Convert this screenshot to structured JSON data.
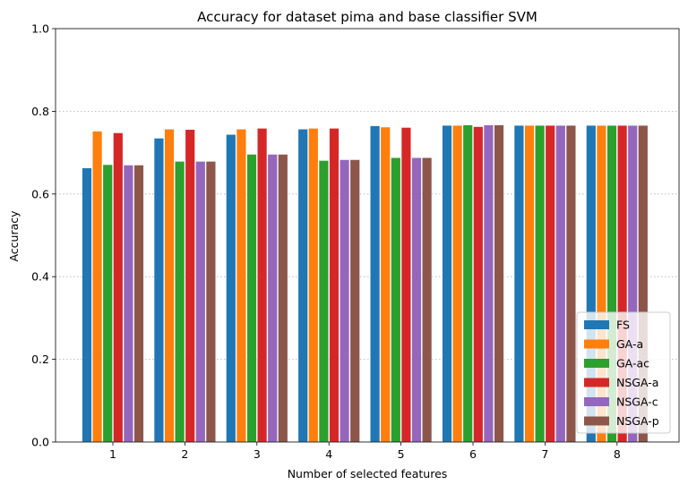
{
  "chart_data": {
    "type": "bar",
    "title": "Accuracy for dataset pima and base classifier SVM",
    "xlabel": "Number of selected features",
    "ylabel": "Accuracy",
    "ylim": [
      0,
      1.0
    ],
    "yticks": [
      "0.0",
      "0.2",
      "0.4",
      "0.6",
      "0.8",
      "1.0"
    ],
    "grid": "horizontal dotted",
    "legend_position": "bottom-right",
    "categories": [
      "1",
      "2",
      "3",
      "4",
      "5",
      "6",
      "7",
      "8"
    ],
    "series": [
      {
        "name": "FS",
        "color": "#1f77b4",
        "values": [
          0.663,
          0.735,
          0.744,
          0.757,
          0.765,
          0.766,
          0.766,
          0.766
        ]
      },
      {
        "name": "GA-a",
        "color": "#ff7f0e",
        "values": [
          0.752,
          0.757,
          0.757,
          0.759,
          0.762,
          0.766,
          0.766,
          0.766
        ]
      },
      {
        "name": "GA-ac",
        "color": "#2ca02c",
        "values": [
          0.671,
          0.679,
          0.696,
          0.681,
          0.688,
          0.767,
          0.766,
          0.766
        ]
      },
      {
        "name": "NSGA-a",
        "color": "#d62728",
        "values": [
          0.748,
          0.756,
          0.759,
          0.759,
          0.761,
          0.763,
          0.766,
          0.766
        ]
      },
      {
        "name": "NSGA-c",
        "color": "#9467bd",
        "values": [
          0.67,
          0.679,
          0.696,
          0.683,
          0.688,
          0.767,
          0.766,
          0.766
        ]
      },
      {
        "name": "NSGA-p",
        "color": "#8c564b",
        "values": [
          0.67,
          0.679,
          0.696,
          0.683,
          0.688,
          0.767,
          0.766,
          0.766
        ]
      }
    ]
  }
}
